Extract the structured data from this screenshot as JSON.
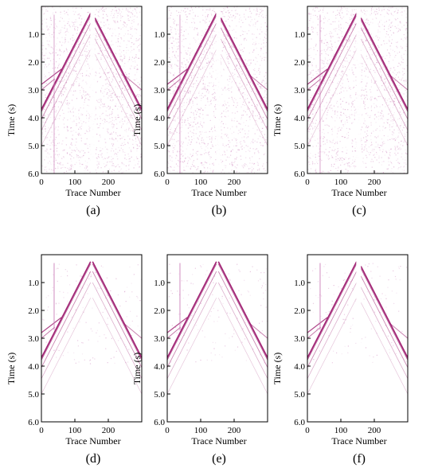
{
  "figure": {
    "panels": [
      {
        "label": "(a)",
        "variant": "noisy",
        "gap": true
      },
      {
        "label": "(b)",
        "variant": "noisy",
        "gap": true
      },
      {
        "label": "(c)",
        "variant": "noisy",
        "gap": true
      },
      {
        "label": "(d)",
        "variant": "clean",
        "gap": false
      },
      {
        "label": "(e)",
        "variant": "clean",
        "gap": false
      },
      {
        "label": "(f)",
        "variant": "clean",
        "gap": true
      }
    ],
    "ylabel": "Time (s)",
    "xlabel": "Trace  Number",
    "yticks": [
      "1.0",
      "2.0",
      "3.0",
      "4.0",
      "5.0",
      "6.0"
    ],
    "xticks": [
      "0",
      "100",
      "200"
    ],
    "colors": {
      "event": "#9c1a6e",
      "noise": "#cf86bd",
      "axis": "#000000"
    }
  },
  "chart_data": [
    {
      "type": "heatmap",
      "title": "(a)",
      "xlabel": "Trace  Number",
      "ylabel": "Time (s)",
      "xlim": [
        0,
        300
      ],
      "ylim": [
        6.0,
        0.0
      ],
      "x_ticks": [
        0,
        100,
        200
      ],
      "y_ticks": [
        1.0,
        2.0,
        3.0,
        4.0,
        5.0,
        6.0
      ],
      "apex": {
        "trace": 150,
        "time": 0.2
      },
      "grid": false
    },
    {
      "type": "heatmap",
      "title": "(b)",
      "xlabel": "Trace  Number",
      "ylabel": "Time (s)",
      "xlim": [
        0,
        300
      ],
      "ylim": [
        6.0,
        0.0
      ],
      "x_ticks": [
        0,
        100,
        200
      ],
      "y_ticks": [
        1.0,
        2.0,
        3.0,
        4.0,
        5.0,
        6.0
      ],
      "apex": {
        "trace": 150,
        "time": 0.2
      },
      "grid": false
    },
    {
      "type": "heatmap",
      "title": "(c)",
      "xlabel": "Trace  Number",
      "ylabel": "Time (s)",
      "xlim": [
        0,
        300
      ],
      "ylim": [
        6.0,
        0.0
      ],
      "x_ticks": [
        0,
        100,
        200
      ],
      "y_ticks": [
        1.0,
        2.0,
        3.0,
        4.0,
        5.0,
        6.0
      ],
      "apex": {
        "trace": 150,
        "time": 0.2
      },
      "grid": false
    },
    {
      "type": "heatmap",
      "title": "(d)",
      "xlabel": "Trace  Number",
      "ylabel": "Time (s)",
      "xlim": [
        0,
        300
      ],
      "ylim": [
        6.0,
        0.0
      ],
      "x_ticks": [
        0,
        100,
        200
      ],
      "y_ticks": [
        1.0,
        2.0,
        3.0,
        4.0,
        5.0,
        6.0
      ],
      "apex": {
        "trace": 150,
        "time": 0.2
      },
      "grid": false
    },
    {
      "type": "heatmap",
      "title": "(e)",
      "xlabel": "Trace  Number",
      "ylabel": "Time (s)",
      "xlim": [
        0,
        300
      ],
      "ylim": [
        6.0,
        0.0
      ],
      "x_ticks": [
        0,
        100,
        200
      ],
      "y_ticks": [
        1.0,
        2.0,
        3.0,
        4.0,
        5.0,
        6.0
      ],
      "apex": {
        "trace": 150,
        "time": 0.2
      },
      "grid": false
    },
    {
      "type": "heatmap",
      "title": "(f)",
      "xlabel": "Trace  Number",
      "ylabel": "Time (s)",
      "xlim": [
        0,
        300
      ],
      "ylim": [
        6.0,
        0.0
      ],
      "x_ticks": [
        0,
        100,
        200
      ],
      "y_ticks": [
        1.0,
        2.0,
        3.0,
        4.0,
        5.0,
        6.0
      ],
      "apex": {
        "trace": 150,
        "time": 0.2
      },
      "grid": false
    }
  ]
}
